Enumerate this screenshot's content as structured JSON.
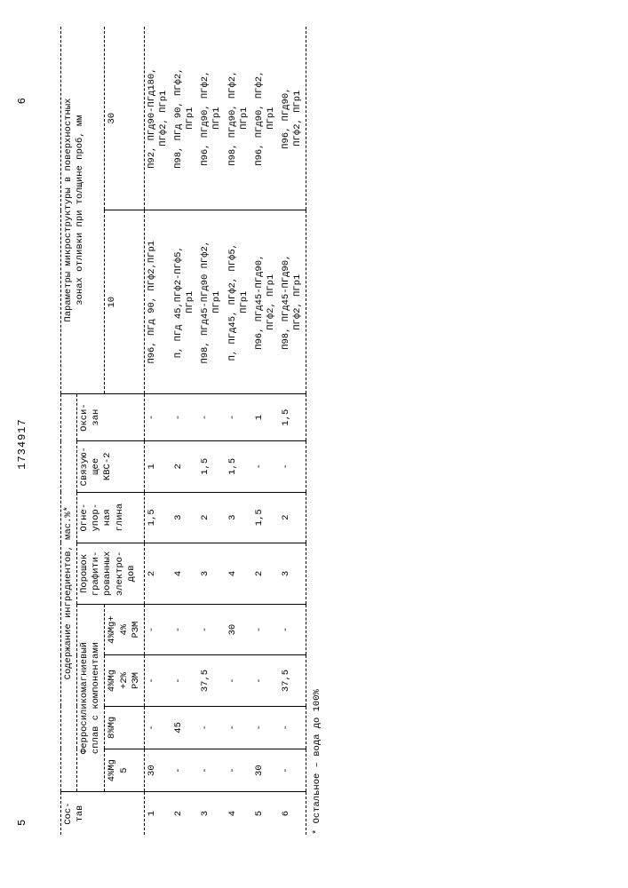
{
  "doc": {
    "number": "1734917",
    "page_left": "5",
    "page_right": "6",
    "footnote": "* Остальное – вода до 100%"
  },
  "headers": {
    "sostav": "Сос-\nтав",
    "soderzh": "Содержание ингредиентов, мас.%*",
    "ferro_group": "Ферросиликомагниевый\nсплав с компонентами",
    "ferro_a": "4%Mg\n5",
    "ferro_b": "8%Mg",
    "ferro_c": "4%Mg\n+2%\nРЗМ",
    "ferro_d": "4%Mg+\n4%\nРЗМ",
    "poroshok": "Порошок\nграфити-\nрованных\nэлектро-\nдов",
    "glina": "Огне-\nупор-\nная\nглина",
    "svyaz": "Связую-\nщее\nКВС-2",
    "oksi": "Окси-\nзан",
    "micro_group": "Параметры микроструктуры в поверхностных\nзонах отливки при толщине проб, мм",
    "m10": "10",
    "m30": "30"
  },
  "rows": [
    {
      "n": "1",
      "a": "30",
      "b": "-",
      "c": "-",
      "d": "-",
      "e": "2",
      "f": "1,5",
      "g": "1",
      "h": "-",
      "m10": "П96, ПГд 90, ПГф2,ПГр1",
      "m30": "П92, ПГд90-ПГд180,\nПГф2, ПГр1"
    },
    {
      "n": "2",
      "a": "-",
      "b": "45",
      "c": "-",
      "d": "-",
      "e": "4",
      "f": "3",
      "g": "2",
      "h": "-",
      "m10": "П, ПГд 45,ПГф2-ПГф5,\nПГр1",
      "m30": "П98, ПГд 90, ПГф2,\nПГр1"
    },
    {
      "n": "3",
      "a": "-",
      "b": "-",
      "c": "37,5",
      "d": "-",
      "e": "3",
      "f": "2",
      "g": "1,5",
      "h": "-",
      "m10": "П98, ПГд45-ПГд90 ПГф2,\nПГр1",
      "m30": "П96, ПГд90, ПГф2,\nПГр1"
    },
    {
      "n": "4",
      "a": "-",
      "b": "-",
      "c": "-",
      "d": "30",
      "e": "4",
      "f": "3",
      "g": "1,5",
      "h": "-",
      "m10": "П, ПГд45, ПГф2, ПГф5,\nПГр1",
      "m30": "П98, ПГд90, ПГф2,\nПГр1"
    },
    {
      "n": "5",
      "a": "30",
      "b": "-",
      "c": "-",
      "d": "-",
      "e": "2",
      "f": "1,5",
      "g": "-",
      "h": "1",
      "m10": "П96, ПГд45-ПГд90,\nПГф2, ПГр1",
      "m30": "П96, ПГд90, ПГф2,\nПГр1"
    },
    {
      "n": "6",
      "a": "-",
      "b": "-",
      "c": "37,5",
      "d": "-",
      "e": "3",
      "f": "2",
      "g": "-",
      "h": "1,5",
      "m10": "П98, ПГд45-ПГд90,\nПГф2, ПГр1",
      "m30": "П96, ПГд90,\nПГф2, ПГр1"
    }
  ]
}
